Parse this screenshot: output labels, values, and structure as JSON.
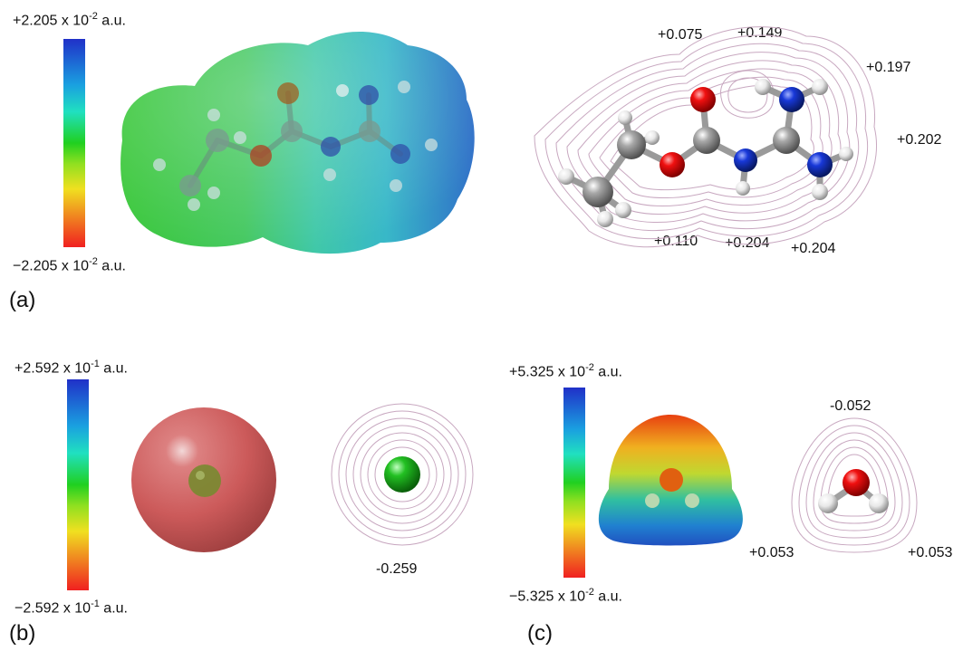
{
  "panel_a": {
    "label": "(a)",
    "scale_max": "+2.205 x 10",
    "scale_max_exp": "-2",
    "scale_min": "−2.205 x 10",
    "scale_min_exp": "-2",
    "unit": " a.u.",
    "charges": [
      "+0.075",
      "+0.149",
      "+0.197",
      "+0.202",
      "+0.110",
      "+0.204",
      "+0.204"
    ]
  },
  "panel_b": {
    "label": "(b)",
    "scale_max": "+2.592 x 10",
    "scale_max_exp": "-1",
    "scale_min": "−2.592 x 10",
    "scale_min_exp": "-1",
    "unit": " a.u.",
    "charges": [
      "-0.259"
    ]
  },
  "panel_c": {
    "label": "(c)",
    "scale_max": "+5.325 x 10",
    "scale_max_exp": "-2",
    "scale_min": "−5.325 x 10",
    "scale_min_exp": "-2",
    "unit": " a.u.",
    "charges": [
      "-0.052",
      "+0.053",
      "+0.053"
    ]
  },
  "colors": {
    "atom_carbon": "#8a8a8a",
    "atom_oxygen": "#e00000",
    "atom_nitrogen": "#1030c0",
    "atom_hydrogen": "#e8e8e8",
    "chloride": "#22c022",
    "contour": "#c8a8c0"
  }
}
